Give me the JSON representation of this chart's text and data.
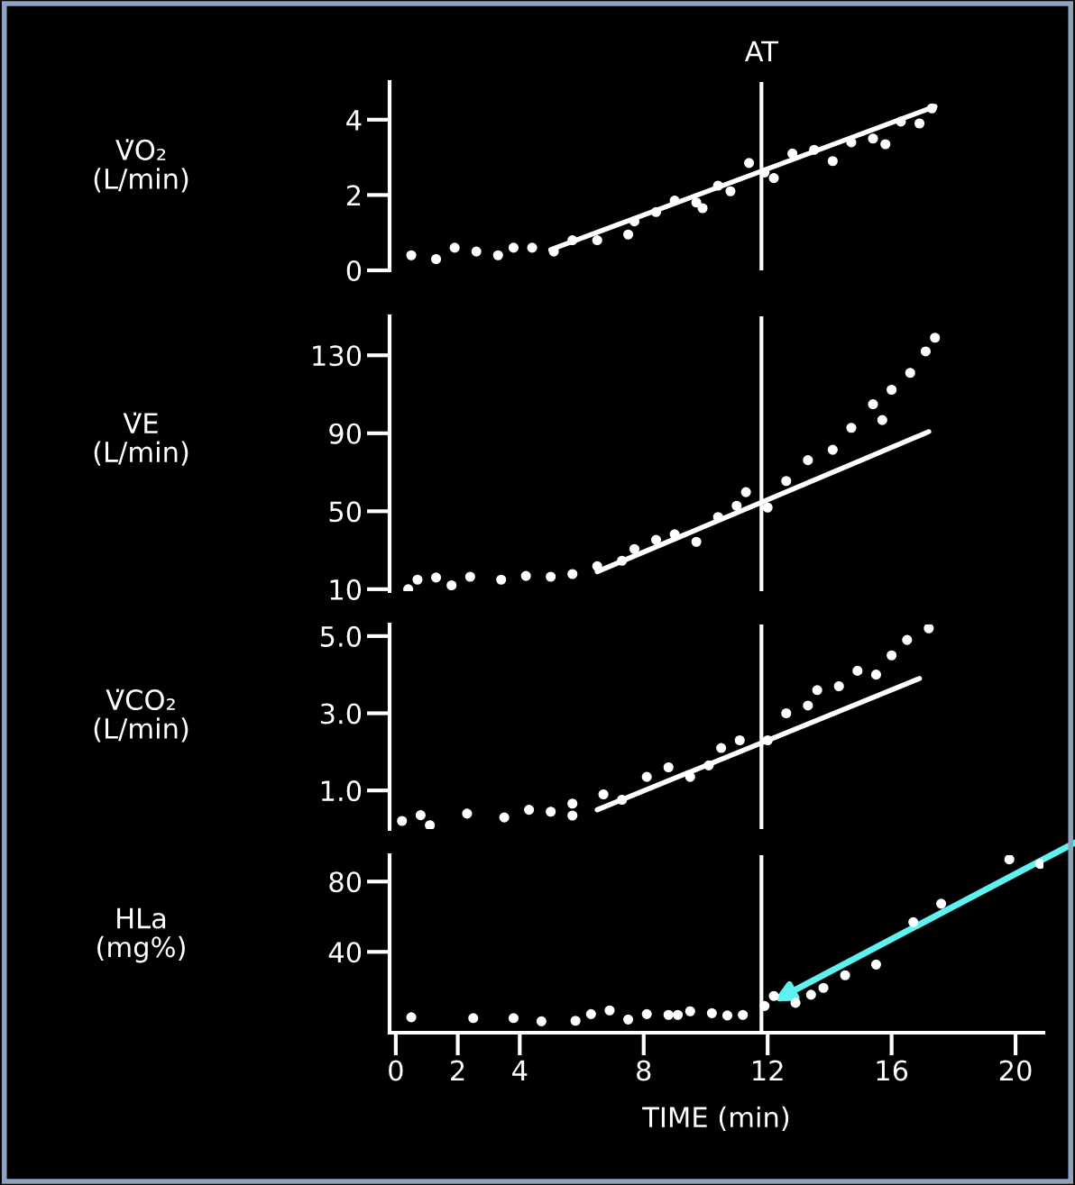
{
  "chart_data": [
    {
      "type": "scatter",
      "ylabel": "V̇O₂\n(L/min)",
      "xticks": [
        0,
        2,
        4,
        8,
        12,
        16,
        20
      ],
      "ylim": [
        0,
        5
      ],
      "yticks": [
        0,
        2,
        4
      ],
      "tick_labels": "y",
      "grid": false,
      "ref_lines": [
        {
          "axis": "x",
          "value": 11.8,
          "label": "AT",
          "color": "#ffffff"
        }
      ],
      "series": [
        {
          "marker": "circle",
          "color": "#ffffff",
          "x": [
            0.5,
            1.3,
            1.9,
            2.6,
            3.3,
            3.8,
            4.4,
            5.1,
            5.7,
            6.5,
            7.5,
            7.7,
            8.4,
            9.0,
            9.7,
            9.9,
            10.4,
            10.8,
            11.4,
            11.9,
            12.2,
            12.8,
            13.5,
            14.1,
            14.7,
            15.4,
            15.8,
            16.3,
            16.9,
            17.3
          ],
          "values": [
            0.4,
            0.3,
            0.6,
            0.5,
            0.4,
            0.6,
            0.6,
            0.5,
            0.8,
            0.8,
            0.95,
            1.3,
            1.55,
            1.85,
            1.8,
            1.65,
            2.25,
            2.1,
            2.85,
            2.6,
            2.45,
            3.1,
            3.2,
            2.9,
            3.4,
            3.5,
            3.35,
            3.95,
            3.9,
            4.3
          ]
        },
        {
          "type": "line",
          "color": "#ffffff",
          "x": [
            5,
            17.4
          ],
          "values": [
            0.55,
            4.35
          ]
        }
      ]
    },
    {
      "type": "scatter",
      "ylabel": "V̇E\n(L/min)",
      "xticks": [
        0,
        2,
        4,
        8,
        12,
        16,
        20
      ],
      "ylim": [
        9,
        150
      ],
      "yticks": [
        10,
        50,
        90,
        130
      ],
      "tick_labels": "y",
      "grid": false,
      "ref_lines": [
        {
          "axis": "x",
          "value": 11.8,
          "color": "#ffffff"
        }
      ],
      "series": [
        {
          "marker": "circle",
          "color": "#ffffff",
          "x": [
            0.4,
            0.7,
            1.3,
            1.8,
            2.4,
            3.4,
            4.2,
            5.0,
            5.7,
            6.5,
            7.3,
            7.7,
            8.4,
            9.0,
            9.7,
            10.4,
            11.0,
            11.3,
            12.0,
            12.6,
            13.3,
            14.1,
            14.7,
            15.4,
            15.7,
            16.0,
            16.6,
            17.1,
            17.4
          ],
          "values": [
            10,
            14.9,
            16,
            12,
            16.4,
            14.9,
            16.8,
            16.4,
            17.8,
            21.8,
            24.6,
            30.6,
            35.3,
            38.2,
            34.3,
            47,
            52.8,
            59.8,
            51.9,
            65.5,
            76.2,
            81.5,
            92.8,
            104.9,
            96.8,
            112.3,
            121,
            132,
            139
          ]
        },
        {
          "type": "line",
          "color": "#ffffff",
          "x": [
            6.5,
            17.2
          ],
          "values": [
            19,
            90.8
          ]
        }
      ]
    },
    {
      "type": "scatter",
      "ylabel": "V̇CO₂\n(L/min)",
      "xticks": [
        0,
        2,
        4,
        8,
        12,
        16,
        20
      ],
      "ylim": [
        0,
        5.3
      ],
      "yticks": [
        {
          "value": 1.0,
          "label": "1.0"
        },
        {
          "value": 3.0,
          "label": "3.0"
        },
        {
          "value": 5.0,
          "label": "5.0"
        }
      ],
      "tick_labels": "y",
      "grid": false,
      "ref_lines": [
        {
          "axis": "x",
          "value": 11.8,
          "color": "#ffffff"
        }
      ],
      "series": [
        {
          "marker": "circle",
          "color": "#ffffff",
          "x": [
            0.2,
            0.8,
            1.1,
            2.3,
            3.5,
            4.3,
            5.0,
            5.7,
            5.7,
            6.7,
            7.3,
            8.1,
            8.8,
            9.5,
            10.1,
            10.5,
            11.1,
            12.0,
            12.6,
            13.3,
            13.6,
            14.3,
            14.9,
            15.5,
            16.0,
            16.5,
            17.2
          ],
          "values": [
            0.21,
            0.36,
            0.1,
            0.4,
            0.3,
            0.5,
            0.45,
            0.35,
            0.66,
            0.9,
            0.76,
            1.35,
            1.6,
            1.35,
            1.65,
            2.1,
            2.3,
            2.3,
            3.0,
            3.2,
            3.6,
            3.7,
            4.1,
            4.0,
            4.5,
            4.9,
            5.2
          ]
        },
        {
          "type": "line",
          "color": "#ffffff",
          "x": [
            6.5,
            16.9
          ],
          "values": [
            0.5,
            3.9
          ]
        }
      ]
    },
    {
      "type": "scatter",
      "ylabel": "HLa\n(mg%)",
      "xlabel": "TIME (min)",
      "xlim": [
        -0.2,
        20.9
      ],
      "xticks": [
        0,
        2,
        4,
        8,
        12,
        16,
        20
      ],
      "ylim": [
        -6,
        95
      ],
      "yticks": [
        40,
        80
      ],
      "grid": false,
      "ref_lines": [
        {
          "axis": "x",
          "value": 11.8,
          "color": "#ffffff"
        }
      ],
      "series": [
        {
          "marker": "circle",
          "color": "#ffffff",
          "x": [
            0.5,
            2.5,
            3.8,
            4.7,
            5.8,
            6.3,
            6.9,
            7.5,
            8.1,
            8.8,
            9.1,
            9.5,
            10.2,
            10.7,
            11.2,
            11.9,
            12.2,
            12.9,
            13.4,
            13.8,
            14.5,
            15.5,
            16.7,
            17.6,
            19.8,
            20.8
          ],
          "values": [
            2.8,
            2.3,
            2.3,
            0.5,
            0.8,
            4.6,
            6.7,
            1.5,
            4.6,
            4.1,
            4.1,
            6.2,
            5.1,
            3.8,
            4.1,
            9.2,
            14.9,
            11,
            15.6,
            19.5,
            26.7,
            32.8,
            56.9,
            67.4,
            92.6,
            90
          ]
        }
      ]
    }
  ]
}
